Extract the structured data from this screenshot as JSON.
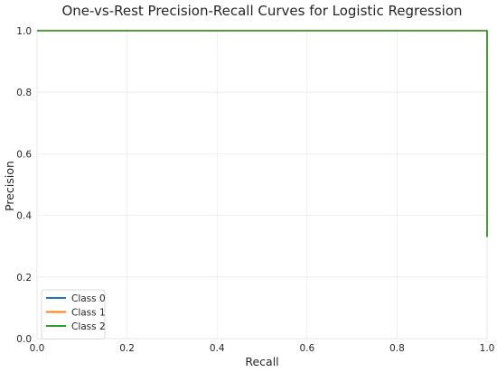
{
  "chart_data": {
    "type": "line",
    "title": "One-vs-Rest Precision-Recall Curves for Logistic Regression",
    "xlabel": "Recall",
    "ylabel": "Precision",
    "xlim": [
      0.0,
      1.0
    ],
    "ylim": [
      0.0,
      1.0
    ],
    "x_ticks": [
      "0.0",
      "0.2",
      "0.4",
      "0.6",
      "0.8",
      "1.0"
    ],
    "y_ticks": [
      "0.0",
      "0.2",
      "0.4",
      "0.6",
      "0.8",
      "1.0"
    ],
    "grid": true,
    "legend_placement": "lower-left",
    "series": [
      {
        "name": "Class 0",
        "color": "#1f77b4",
        "x": [
          0.0,
          1.0,
          1.0
        ],
        "y": [
          1.0,
          1.0,
          0.33
        ]
      },
      {
        "name": "Class 1",
        "color": "#ff7f0e",
        "x": [
          0.0,
          1.0,
          1.0
        ],
        "y": [
          1.0,
          1.0,
          0.33
        ]
      },
      {
        "name": "Class 2",
        "color": "#2ca02c",
        "x": [
          0.0,
          1.0,
          1.0
        ],
        "y": [
          1.0,
          1.0,
          0.33
        ]
      }
    ]
  }
}
